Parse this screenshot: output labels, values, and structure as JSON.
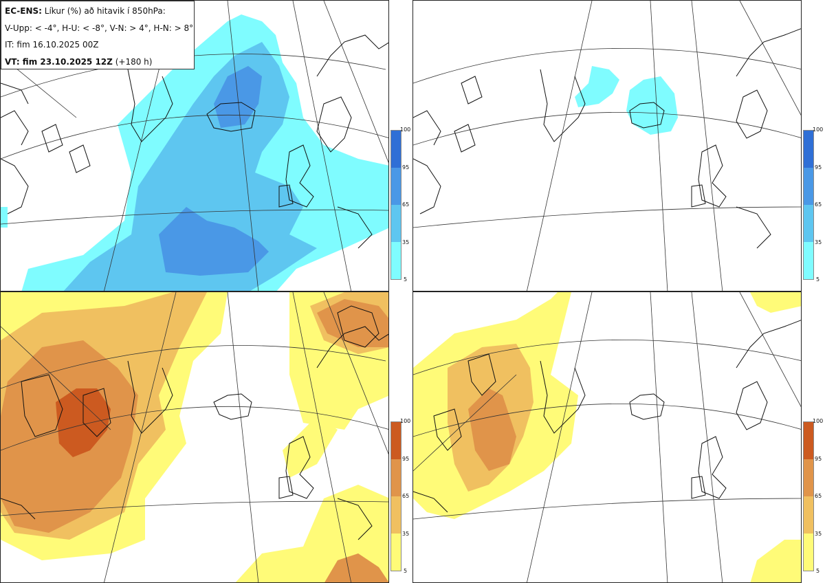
{
  "info": {
    "model": "EC-ENS:",
    "title": "Líkur (%) að hitavik í 850hPa:",
    "criteria": "V-Upp: < -4°, H-U: < -8°, V-N: > 4°, H-N: > 8°",
    "init_time": "IT: fim 16.10.2025 00Z",
    "valid_label": "VT: fim 23.10.2025 12Z",
    "lead_time": "(+180 h)"
  },
  "colorbars": {
    "ticks": [
      "100",
      "95",
      "65",
      "35",
      "5"
    ],
    "cold_colors": [
      "#2f6fd6",
      "#4a98e6",
      "#5ec6f0",
      "#7ffcff"
    ],
    "warm_colors": [
      "#cc5a20",
      "#e0944a",
      "#f0c060",
      "#fffb78"
    ]
  },
  "panels": [
    {
      "id": "upper-left",
      "description": "V-Upp"
    },
    {
      "id": "upper-right",
      "description": "H-U"
    },
    {
      "id": "lower-left",
      "description": "V-N"
    },
    {
      "id": "lower-right",
      "description": "H-N"
    }
  ]
}
